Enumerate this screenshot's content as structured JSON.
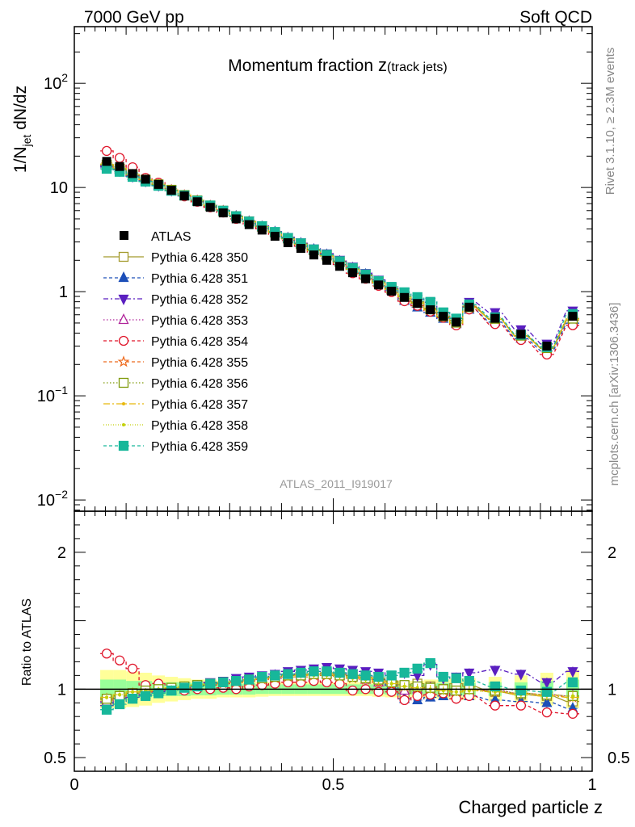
{
  "header": {
    "left": "7000 GeV pp",
    "right": "Soft QCD"
  },
  "side_text": {
    "rivet": "Rivet 3.1.10, ≥ 2.3M events",
    "mcplots": "mcplots.cern.ch [arXiv:1306.3436]"
  },
  "chart_data": [
    {
      "type": "line",
      "title": "Momentum fraction",
      "title_variable": "z",
      "title_subscript": "(track jets)",
      "ylabel_main": "1/N",
      "ylabel_sub": "jet",
      "ylabel_tail": " dN/dz",
      "yscale": "log",
      "ylim": [
        0.0078,
        350
      ],
      "xlim": [
        0,
        1
      ],
      "y_ticks": [
        {
          "value": 100,
          "base": "10",
          "exp": "2"
        },
        {
          "value": 10,
          "base": "10",
          "exp": ""
        },
        {
          "value": 1,
          "base": "1",
          "exp": ""
        },
        {
          "value": 0.1,
          "base": "10",
          "exp": "−1"
        },
        {
          "value": 0.01,
          "base": "10",
          "exp": "−2"
        }
      ],
      "watermark": "ATLAS_2011_I919017",
      "x": [
        0.0625,
        0.0875,
        0.1125,
        0.1375,
        0.1625,
        0.1875,
        0.2125,
        0.2375,
        0.2625,
        0.2875,
        0.3125,
        0.3375,
        0.3625,
        0.3875,
        0.4125,
        0.4375,
        0.4625,
        0.4875,
        0.5125,
        0.5375,
        0.5625,
        0.5875,
        0.6125,
        0.6375,
        0.6625,
        0.6875,
        0.7125,
        0.7375,
        0.7625,
        0.8125,
        0.8625,
        0.9125,
        0.9625
      ],
      "reference": {
        "name": "ATLAS",
        "values": [
          17.8,
          15.9,
          13.6,
          12.0,
          10.7,
          9.4,
          8.3,
          7.3,
          6.45,
          5.7,
          5.0,
          4.4,
          3.9,
          3.4,
          2.95,
          2.6,
          2.25,
          2.0,
          1.75,
          1.52,
          1.33,
          1.16,
          1.01,
          0.88,
          0.77,
          0.67,
          0.58,
          0.51,
          0.71,
          0.555,
          0.39,
          0.3,
          0.58
        ]
      }
    },
    {
      "type": "line",
      "ylabel": "Ratio to ATLAS",
      "xlabel": "Charged particle z",
      "ylim": [
        0.4,
        2.3
      ],
      "xlim": [
        0,
        1
      ],
      "y_ticks": [
        {
          "value": 0.5,
          "label": "0.5"
        },
        {
          "value": 1,
          "label": "1"
        },
        {
          "value": 2,
          "label": "2"
        }
      ],
      "x_ticks": [
        {
          "value": 0,
          "label": "0"
        },
        {
          "value": 0.5,
          "label": "0.5"
        },
        {
          "value": 1,
          "label": "1"
        }
      ],
      "reference_line": 1,
      "band_inner": [
        0.07,
        0.07,
        0.06,
        0.06,
        0.05,
        0.05,
        0.05,
        0.045,
        0.045,
        0.04,
        0.04,
        0.04,
        0.035,
        0.035,
        0.035,
        0.035,
        0.035,
        0.035,
        0.035,
        0.035,
        0.035,
        0.035,
        0.04,
        0.04,
        0.04,
        0.04,
        0.045,
        0.045,
        0.045,
        0.05,
        0.05,
        0.06,
        0.07
      ],
      "band_outer": [
        0.14,
        0.14,
        0.13,
        0.12,
        0.1,
        0.09,
        0.08,
        0.07,
        0.07,
        0.06,
        0.06,
        0.06,
        0.055,
        0.05,
        0.05,
        0.05,
        0.05,
        0.05,
        0.05,
        0.05,
        0.05,
        0.055,
        0.06,
        0.06,
        0.06,
        0.07,
        0.07,
        0.08,
        0.08,
        0.09,
        0.1,
        0.12,
        0.14
      ],
      "series": [
        {
          "name": "Pythia 6.428 350",
          "color": "#a39a2c",
          "dash": "",
          "marker": "square-open",
          "values": [
            0.92,
            0.95,
            0.97,
            0.98,
            0.99,
            1.0,
            1.01,
            1.02,
            1.03,
            1.04,
            1.05,
            1.07,
            1.08,
            1.09,
            1.1,
            1.11,
            1.11,
            1.12,
            1.11,
            1.1,
            1.09,
            1.08,
            1.06,
            0.97,
            1.04,
            1.02,
            1.0,
            1.04,
            1.02,
            0.98,
            0.96,
            0.95,
            0.91
          ]
        },
        {
          "name": "Pythia 6.428 351",
          "color": "#1d4fb8",
          "dash": "4,3",
          "marker": "triangle-up",
          "values": [
            0.9,
            0.93,
            0.95,
            0.96,
            0.98,
            0.99,
            1.0,
            1.02,
            1.03,
            1.04,
            1.06,
            1.07,
            1.08,
            1.1,
            1.11,
            1.12,
            1.13,
            1.13,
            1.12,
            1.11,
            1.1,
            1.07,
            1.03,
            0.93,
            0.92,
            0.94,
            0.95,
            0.96,
            0.95,
            0.92,
            0.91,
            0.9,
            0.86
          ]
        },
        {
          "name": "Pythia 6.428 352",
          "color": "#5a1fc0",
          "dash": "6,3,2,3",
          "marker": "triangle-down",
          "values": [
            0.88,
            0.91,
            0.94,
            0.96,
            0.98,
            1.0,
            1.02,
            1.03,
            1.05,
            1.06,
            1.08,
            1.09,
            1.1,
            1.11,
            1.13,
            1.14,
            1.15,
            1.16,
            1.15,
            1.14,
            1.13,
            1.12,
            1.1,
            1.12,
            1.1,
            1.18,
            1.08,
            1.09,
            1.12,
            1.14,
            1.11,
            1.05,
            1.13
          ]
        },
        {
          "name": "Pythia 6.428 353",
          "color": "#b0249a",
          "dash": "1.5,2.5",
          "marker": "triangle-up-open",
          "values": [
            0.91,
            0.94,
            0.96,
            0.98,
            0.99,
            1.0,
            1.01,
            1.02,
            1.03,
            1.04,
            1.05,
            1.06,
            1.07,
            1.08,
            1.09,
            1.1,
            1.1,
            1.11,
            1.1,
            1.09,
            1.07,
            1.05,
            1.02,
            0.99,
            1.0,
            1.01,
            1.0,
            0.98,
            1.0,
            0.99,
            0.97,
            0.96,
            0.95
          ]
        },
        {
          "name": "Pythia 6.428 354",
          "color": "#e0162b",
          "dash": "4,3",
          "marker": "circle-open",
          "values": [
            1.26,
            1.21,
            1.15,
            1.03,
            1.04,
            1.01,
            0.99,
            1.0,
            1.0,
            1.01,
            1.0,
            1.02,
            1.03,
            1.04,
            1.05,
            1.05,
            1.06,
            1.05,
            1.04,
            0.99,
            1.0,
            0.98,
            0.98,
            0.92,
            0.95,
            0.96,
            0.97,
            0.93,
            0.95,
            0.88,
            0.88,
            0.83,
            0.82
          ]
        },
        {
          "name": "Pythia 6.428 355",
          "color": "#ee6a1d",
          "dash": "4,3",
          "marker": "star-open",
          "values": [
            0.93,
            0.95,
            0.97,
            0.98,
            0.99,
            1.0,
            1.01,
            1.02,
            1.03,
            1.04,
            1.05,
            1.06,
            1.07,
            1.08,
            1.09,
            1.09,
            1.1,
            1.1,
            1.09,
            1.08,
            1.07,
            1.05,
            1.04,
            1.02,
            1.01,
            1.0,
            0.99,
            0.98,
            1.0,
            0.98,
            0.97,
            0.96,
            0.94
          ]
        },
        {
          "name": "Pythia 6.428 356",
          "color": "#7f9a0a",
          "dash": "1.5,2.5",
          "marker": "square-open",
          "values": [
            0.93,
            0.95,
            0.97,
            0.99,
            1.0,
            1.01,
            1.02,
            1.03,
            1.04,
            1.05,
            1.06,
            1.07,
            1.08,
            1.09,
            1.1,
            1.1,
            1.11,
            1.11,
            1.1,
            1.09,
            1.08,
            1.07,
            1.05,
            1.03,
            1.02,
            1.01,
            1.0,
            0.99,
            1.0,
            0.99,
            0.97,
            0.96,
            0.95
          ]
        },
        {
          "name": "Pythia 6.428 357",
          "color": "#e8b80c",
          "dash": "8,3,2,3",
          "marker": "dot",
          "values": [
            0.94,
            0.96,
            0.98,
            0.99,
            1.0,
            1.01,
            1.02,
            1.03,
            1.04,
            1.05,
            1.06,
            1.07,
            1.08,
            1.09,
            1.1,
            1.1,
            1.11,
            1.11,
            1.1,
            1.09,
            1.08,
            1.06,
            1.04,
            1.02,
            1.01,
            1.0,
            0.99,
            0.98,
            0.99,
            0.98,
            0.96,
            0.95,
            0.94
          ]
        },
        {
          "name": "Pythia 6.428 358",
          "color": "#c3d10a",
          "dash": "1,2",
          "marker": "dot",
          "values": [
            0.94,
            0.96,
            0.98,
            0.99,
            1.0,
            1.01,
            1.02,
            1.03,
            1.04,
            1.05,
            1.06,
            1.07,
            1.08,
            1.09,
            1.09,
            1.1,
            1.1,
            1.1,
            1.09,
            1.08,
            1.07,
            1.06,
            1.04,
            1.02,
            1.01,
            1.0,
            0.99,
            0.98,
            0.99,
            0.98,
            0.97,
            0.96,
            0.95
          ]
        },
        {
          "name": "Pythia 6.428 359",
          "color": "#17b79a",
          "dash": "4,3",
          "marker": "square",
          "values": [
            0.85,
            0.89,
            0.93,
            0.95,
            0.97,
            0.99,
            1.01,
            1.02,
            1.04,
            1.05,
            1.06,
            1.07,
            1.09,
            1.1,
            1.11,
            1.12,
            1.13,
            1.13,
            1.12,
            1.11,
            1.1,
            1.09,
            1.1,
            1.12,
            1.15,
            1.19,
            1.09,
            1.08,
            1.06,
            1.02,
            0.99,
            0.98,
            1.05
          ]
        }
      ]
    }
  ]
}
